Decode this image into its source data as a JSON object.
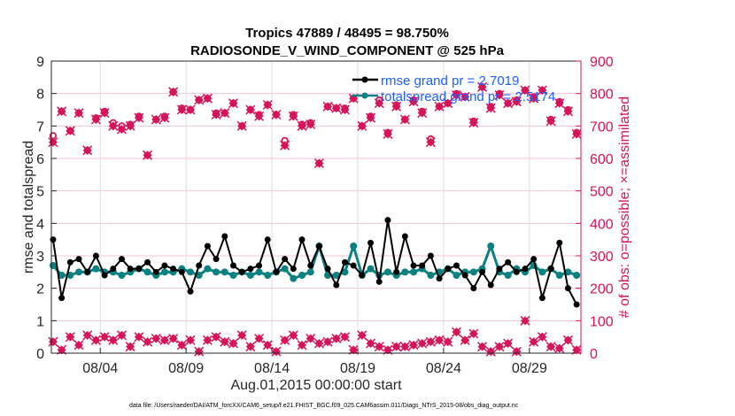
{
  "chart_data": {
    "type": "line",
    "title": "Tropics 47889 / 48495 = 98.750%",
    "subtitle": "RADIOSONDE_V_WIND_COMPONENT @ 525 hPa",
    "xlabel": "Aug.01,2015 00:00:00 start",
    "ylabel": "rmse and totalspread",
    "ylabel_right": "# of obs: o=possible; ×=assimilated",
    "ylim": [
      0,
      9
    ],
    "ylim_right": [
      0,
      900
    ],
    "xlim_days": [
      0.15,
      31.0
    ],
    "yticks": [
      "0",
      "1",
      "2",
      "3",
      "4",
      "5",
      "6",
      "7",
      "8",
      "9"
    ],
    "yticks_right": [
      "0",
      "100",
      "200",
      "300",
      "400",
      "500",
      "600",
      "700",
      "800",
      "900"
    ],
    "xticks": [
      {
        "day": 3,
        "label": "08/04"
      },
      {
        "day": 8,
        "label": "08/09"
      },
      {
        "day": 13,
        "label": "08/14"
      },
      {
        "day": 18,
        "label": "08/19"
      },
      {
        "day": 23,
        "label": "08/24"
      },
      {
        "day": 28,
        "label": "08/29"
      }
    ],
    "grid": true,
    "legend_position": "top-right",
    "x_days": [
      0.25,
      0.75,
      1.25,
      1.75,
      2.25,
      2.75,
      3.25,
      3.75,
      4.25,
      4.75,
      5.25,
      5.75,
      6.25,
      6.75,
      7.25,
      7.75,
      8.25,
      8.75,
      9.25,
      9.75,
      10.25,
      10.75,
      11.25,
      11.75,
      12.25,
      12.75,
      13.25,
      13.75,
      14.25,
      14.75,
      15.25,
      15.75,
      16.25,
      16.75,
      17.25,
      17.75,
      18.25,
      18.75,
      19.25,
      19.75,
      20.25,
      20.75,
      21.25,
      21.75,
      22.25,
      22.75,
      23.25,
      23.75,
      24.25,
      24.75,
      25.25,
      25.75,
      26.25,
      26.75,
      27.25,
      27.75,
      28.25,
      28.75,
      29.25,
      29.75,
      30.25,
      30.75
    ],
    "series": [
      {
        "name": "rmse grand pr = 2.7019",
        "color": "#000000",
        "axis": "left",
        "values": [
          3.5,
          1.7,
          2.8,
          2.9,
          2.5,
          3.0,
          2.4,
          2.6,
          2.9,
          2.6,
          2.6,
          2.8,
          2.5,
          2.7,
          2.6,
          2.5,
          1.9,
          2.7,
          3.3,
          2.9,
          3.6,
          2.7,
          2.5,
          2.6,
          2.7,
          3.5,
          2.5,
          2.9,
          2.6,
          3.5,
          2.7,
          3.3,
          2.6,
          2.1,
          2.8,
          2.7,
          2.4,
          3.4,
          2.2,
          4.1,
          2.5,
          3.6,
          2.7,
          2.7,
          3.0,
          2.3,
          2.6,
          2.7,
          2.4,
          2.0,
          2.5,
          2.1,
          2.6,
          2.8,
          2.5,
          2.6,
          2.9,
          1.7,
          2.6,
          3.4,
          2.0,
          1.5
        ]
      },
      {
        "name": "totalspread grand pr = 2.5174",
        "color": "#0a8080",
        "axis": "left",
        "values": [
          2.7,
          2.4,
          2.4,
          2.5,
          2.5,
          2.6,
          2.5,
          2.5,
          2.4,
          2.5,
          2.6,
          2.5,
          2.4,
          2.5,
          2.5,
          2.6,
          2.5,
          2.4,
          2.6,
          2.5,
          2.5,
          2.4,
          2.5,
          2.4,
          2.5,
          2.4,
          2.5,
          2.6,
          2.3,
          2.4,
          2.5,
          3.3,
          2.4,
          2.4,
          2.5,
          3.3,
          2.4,
          2.6,
          2.4,
          2.5,
          2.4,
          2.5,
          2.5,
          2.6,
          2.4,
          2.5,
          2.6,
          2.4,
          2.5,
          2.5,
          2.6,
          3.3,
          2.5,
          2.4,
          2.6,
          2.5,
          2.7,
          2.5,
          2.6,
          2.4,
          2.5,
          2.4
        ]
      },
      {
        "name": "obs possible",
        "color": "#d6145a",
        "axis": "right",
        "marker": "o",
        "values": [
          670,
          745,
          685,
          740,
          625,
          725,
          745,
          710,
          700,
          705,
          730,
          610,
          720,
          730,
          805,
          755,
          750,
          780,
          785,
          740,
          740,
          770,
          700,
          750,
          735,
          765,
          735,
          655,
          735,
          705,
          710,
          585,
          760,
          755,
          755,
          785,
          700,
          730,
          780,
          680,
          765,
          720,
          780,
          745,
          660,
          760,
          770,
          800,
          790,
          715,
          820,
          760,
          800,
          770,
          780,
          810,
          790,
          810,
          720,
          775,
          750,
          680
        ],
        "values_assimilated": [
          650,
          745,
          685,
          740,
          625,
          720,
          740,
          700,
          690,
          700,
          725,
          610,
          720,
          725,
          805,
          750,
          750,
          780,
          785,
          735,
          740,
          770,
          700,
          750,
          730,
          765,
          735,
          640,
          730,
          700,
          705,
          585,
          760,
          755,
          750,
          785,
          700,
          725,
          770,
          675,
          760,
          720,
          775,
          740,
          650,
          760,
          770,
          795,
          790,
          710,
          820,
          755,
          795,
          770,
          775,
          810,
          785,
          810,
          715,
          770,
          745,
          675
        ]
      },
      {
        "name": "obs low-count",
        "color": "#d6145a",
        "axis": "right",
        "marker": "x",
        "values": [
          35,
          10,
          50,
          25,
          55,
          40,
          50,
          40,
          55,
          20,
          50,
          35,
          45,
          40,
          45,
          25,
          40,
          5,
          40,
          50,
          35,
          30,
          55,
          20,
          45,
          25,
          5,
          40,
          55,
          25,
          45,
          30,
          35,
          45,
          50,
          10,
          55,
          30,
          20,
          10,
          20,
          20,
          25,
          30,
          35,
          40,
          35,
          65,
          40,
          60,
          20,
          5,
          20,
          30,
          5,
          100,
          35,
          50,
          20,
          15,
          40,
          10
        ]
      }
    ]
  },
  "legend": [
    {
      "label": "rmse grand pr = 2.7019",
      "color": "#000000"
    },
    {
      "label": "totalspread grand pr = 2.5174",
      "color": "#0a8080"
    }
  ],
  "footnote": "data file: /Users/raeder/DAI/ATM_forcXX/CAM6_setup/f.e21.FHIST_BGC.f09_025.CAM6assim.011/Diags_NTrS_2015-08/obs_diag_output.nc"
}
